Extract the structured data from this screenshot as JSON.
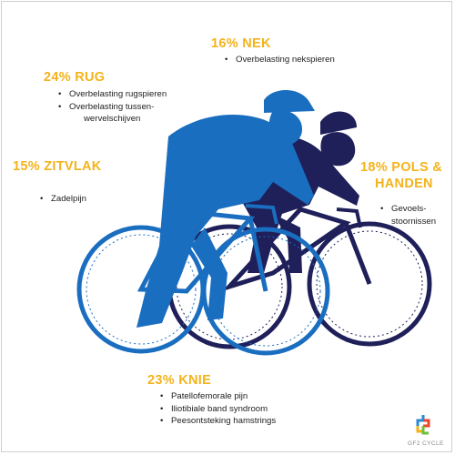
{
  "colors": {
    "accent": "#f3b31b",
    "blue": "#1a6ec0",
    "navy": "#1f1f5a",
    "text": "#1e1e1e"
  },
  "sections": {
    "nek": {
      "title": "16% NEK",
      "items": [
        "Overbelasting nekspieren"
      ]
    },
    "rug": {
      "title": "24% RUG",
      "items": [
        "Overbelasting rugspieren",
        "Overbelasting tussen-",
        "wervelschijven"
      ]
    },
    "zitvlak": {
      "title": "15% ZITVLAK",
      "items": [
        "Zadelpijn"
      ]
    },
    "pols": {
      "title_line1": "18% POLS &",
      "title_line2": "HANDEN",
      "items": [
        "Gevoels-",
        "stoornissen"
      ]
    },
    "knie": {
      "title": "23% KNIE",
      "items": [
        "Patellofemorale pijn",
        "Iliotibiale band syndroom",
        "Peesontsteking hamstrings"
      ]
    }
  },
  "logo": {
    "text": "GF2 CYCLE",
    "icon": "gf2-cycle-logo-icon"
  }
}
